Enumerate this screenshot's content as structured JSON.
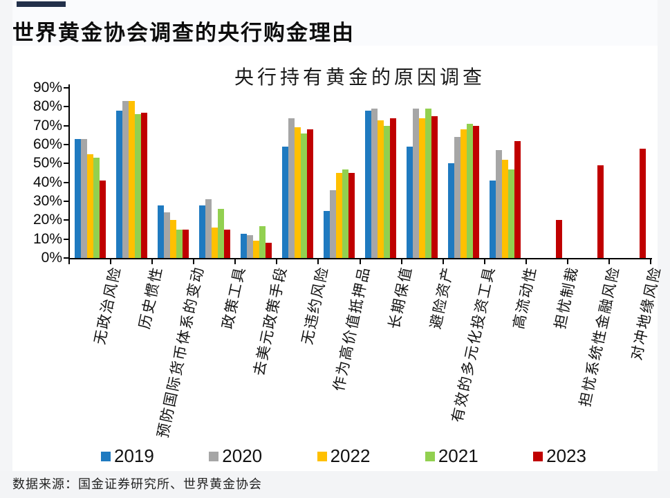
{
  "page": {
    "title": "世界黄金协会调查的央行购金理由",
    "source": "数据来源：国金证券研究所、世界黄金协会"
  },
  "chart_data": {
    "type": "bar",
    "title": "央行持有黄金的原因调查",
    "categories": [
      "无政治风险",
      "历史惯性",
      "预防国际货币体系的变动",
      "政策工具",
      "去美元政策手段",
      "无违约风险",
      "作为高价值抵押品",
      "长期保值",
      "避险资产",
      "有效的多元化投资工具",
      "高流动性",
      "担忧制裁",
      "担忧系统性金融风险",
      "对冲地缘风险"
    ],
    "series": [
      {
        "name": "2019",
        "color": "#1F7AC0",
        "values": [
          63,
          78,
          28,
          28,
          13,
          59,
          25,
          78,
          59,
          50,
          41,
          null,
          null,
          null
        ]
      },
      {
        "name": "2020",
        "color": "#A6A6A6",
        "values": [
          63,
          83,
          24,
          31,
          12,
          74,
          36,
          79,
          79,
          64,
          57,
          null,
          null,
          null
        ]
      },
      {
        "name": "2022",
        "color": "#FFC000",
        "values": [
          55,
          83,
          20,
          16,
          9,
          69,
          45,
          73,
          74,
          68,
          52,
          null,
          null,
          null
        ]
      },
      {
        "name": "2021",
        "color": "#92D050",
        "values": [
          53,
          76,
          15,
          26,
          17,
          66,
          47,
          70,
          79,
          71,
          47,
          null,
          null,
          null
        ]
      },
      {
        "name": "2023",
        "color": "#C00000",
        "values": [
          41,
          77,
          15,
          15,
          8,
          68,
          45,
          74,
          75,
          70,
          62,
          20,
          49,
          58
        ]
      }
    ],
    "xlabel": "",
    "ylabel": "",
    "ylim": [
      0,
      90
    ],
    "yticks": [
      "0%",
      "10%",
      "20%",
      "30%",
      "40%",
      "50%",
      "60%",
      "70%",
      "80%",
      "90%"
    ],
    "ytick_step": 10,
    "grid": false,
    "legend_position": "bottom",
    "axis_color": "#000000"
  }
}
